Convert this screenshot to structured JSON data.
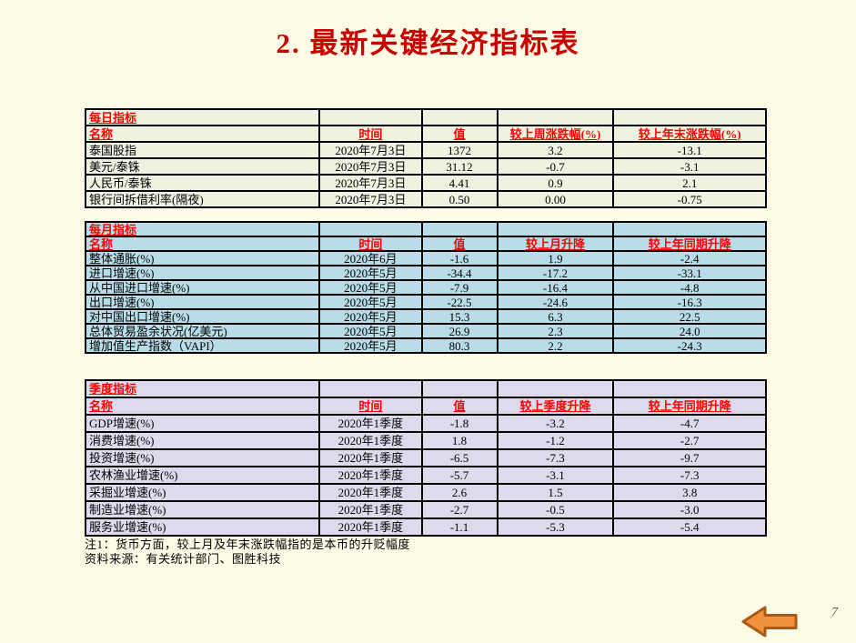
{
  "slide": {
    "title": "2. 最新关键经济指标表",
    "page_number": "7",
    "footnotes": [
      "注1：货币方面，较上月及年末涨跌幅指的是本币的升贬幅度",
      "资料来源：有关统计部门、图胜科技"
    ]
  },
  "colors": {
    "slide_background": "#FDFBE6",
    "title_red": "#C80000",
    "table_header_red": "#FF0000",
    "daily_table_bg": "#EDF2E1",
    "monthly_table_bg": "#B9DDE8",
    "quarterly_table_bg": "#DEDAEB",
    "border_black": "#000000",
    "arrow_fill": "#F2913D",
    "arrow_stroke": "#A85A18",
    "page_number_gray": "#595959"
  },
  "icons": {
    "back_arrow": "left-arrow-icon"
  },
  "tables": [
    {
      "id": "daily-indicators",
      "title": "每日指标",
      "headers": [
        "名称",
        "时间",
        "值",
        "较上周涨跌幅(%)",
        "较上年末涨跌幅(%)"
      ],
      "rows": [
        [
          "泰国股指",
          "2020年7月3日",
          "1372",
          "3.2",
          "-13.1"
        ],
        [
          "美元/泰铢",
          "2020年7月3日",
          "31.12",
          "-0.7",
          "-3.1"
        ],
        [
          "人民币/泰铢",
          "2020年7月3日",
          "4.41",
          "0.9",
          "2.1"
        ],
        [
          "银行间拆借利率(隔夜)",
          "2020年7月3日",
          "0.50",
          "0.00",
          "-0.75"
        ]
      ]
    },
    {
      "id": "monthly-indicators",
      "title": "每月指标",
      "headers": [
        "名称",
        "时间",
        "值",
        "较上月升降",
        "较上年同期升降"
      ],
      "rows": [
        [
          "整体通胀(%)",
          "2020年6月",
          "-1.6",
          "1.9",
          "-2.4"
        ],
        [
          "进口增速(%)",
          "2020年5月",
          "-34.4",
          "-17.2",
          "-33.1"
        ],
        [
          "从中国进口增速(%)",
          "2020年5月",
          "-7.9",
          "-16.4",
          "-4.8"
        ],
        [
          "出口增速(%)",
          "2020年5月",
          "-22.5",
          "-24.6",
          "-16.3"
        ],
        [
          "对中国出口增速(%)",
          "2020年5月",
          "15.3",
          "6.3",
          "22.5"
        ],
        [
          "总体贸易盈余状况(亿美元)",
          "2020年5月",
          "26.9",
          "2.3",
          "24.0"
        ],
        [
          "增加值生产指数（VAPI）",
          "2020年5月",
          "80.3",
          "2.2",
          "-24.3"
        ]
      ]
    },
    {
      "id": "quarterly-indicators",
      "title": "季度指标",
      "headers": [
        "名称",
        "时间",
        "值",
        "较上季度升降",
        "较上年同期升降"
      ],
      "rows": [
        [
          "GDP增速(%)",
          "2020年1季度",
          "-1.8",
          "-3.2",
          "-4.7"
        ],
        [
          "消费增速(%)",
          "2020年1季度",
          "1.8",
          "-1.2",
          "-2.7"
        ],
        [
          "投资增速(%)",
          "2020年1季度",
          "-6.5",
          "-7.3",
          "-9.7"
        ],
        [
          "农林渔业增速(%)",
          "2020年1季度",
          "-5.7",
          "-3.1",
          "-7.3"
        ],
        [
          "采掘业增速(%)",
          "2020年1季度",
          "2.6",
          "1.5",
          "3.8"
        ],
        [
          "制造业增速(%)",
          "2020年1季度",
          "-2.7",
          "-0.5",
          "-3.0"
        ],
        [
          "服务业增速(%)",
          "2020年1季度",
          "-1.1",
          "-5.3",
          "-5.4"
        ]
      ]
    }
  ]
}
